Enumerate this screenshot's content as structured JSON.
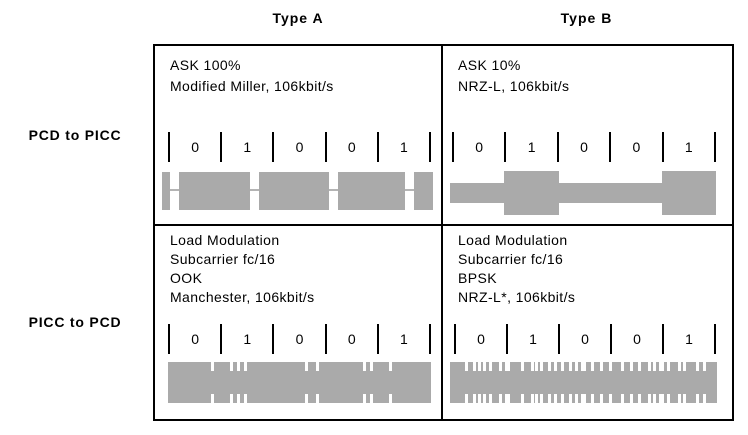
{
  "columns": [
    {
      "label": "Type A"
    },
    {
      "label": "Type B"
    }
  ],
  "row_labels": [
    "PCD to PICC",
    "PICC to PCD"
  ],
  "colors": {
    "waveform_gray": "#aaaaaa",
    "pause_line_gray": "#b4b4b4",
    "border_black": "#000000",
    "background": "#ffffff"
  },
  "cells": [
    {
      "column": "Type A",
      "row": "PCD to PICC",
      "lines": [
        "ASK 100%",
        "Modified Miller, 106kbit/s"
      ],
      "bits": [
        "0",
        "1",
        "0",
        "0",
        "1"
      ],
      "waveform": {
        "kind": "pauses",
        "description": "carrier envelope with 100% ASK pauses (Modified Miller)",
        "pauses": [
          [
            8,
            9
          ],
          [
            88,
            9
          ],
          [
            167,
            9
          ],
          [
            243,
            9
          ]
        ]
      }
    },
    {
      "column": "Type B",
      "row": "PCD to PICC",
      "lines": [
        "ASK 10%",
        "NRZ-L, 106kbit/s"
      ],
      "bits": [
        "0",
        "1",
        "0",
        "0",
        "1"
      ],
      "waveform": {
        "kind": "levels",
        "description": "10% ASK NRZ-L envelope, higher amplitude on 1-bits",
        "high_blocks": [
          [
            54,
            55
          ],
          [
            212,
            54
          ]
        ]
      }
    },
    {
      "column": "Type A",
      "row": "PICC to PCD",
      "lines": [
        "Load Modulation",
        "Subcarrier fc/16",
        "OOK",
        "Manchester, 106kbit/s"
      ],
      "bits": [
        "0",
        "1",
        "0",
        "0",
        "1"
      ],
      "waveform": {
        "kind": "notches",
        "description": "OOK subcarrier bursts (Manchester)",
        "notches": [
          [
            43,
            3
          ],
          [
            62,
            3
          ],
          [
            69,
            3
          ],
          [
            76,
            3
          ],
          [
            137,
            3
          ],
          [
            148,
            3
          ],
          [
            195,
            3
          ],
          [
            202,
            3
          ],
          [
            221,
            3
          ]
        ]
      }
    },
    {
      "column": "Type B",
      "row": "PICC to PCD",
      "lines": [
        "Load Modulation",
        "Subcarrier fc/16",
        "BPSK",
        "NRZ-L*, 106kbit/s"
      ],
      "bits": [
        "0",
        "1",
        "0",
        "0",
        "1"
      ],
      "waveform": {
        "kind": "notches",
        "description": "BPSK subcarrier with phase transitions",
        "notches": [
          [
            15,
            3
          ],
          [
            23,
            3
          ],
          [
            28,
            3
          ],
          [
            33,
            3
          ],
          [
            39,
            3
          ],
          [
            49,
            3
          ],
          [
            55,
            5
          ],
          [
            71,
            3
          ],
          [
            81,
            3
          ],
          [
            85,
            3
          ],
          [
            90,
            3
          ],
          [
            98,
            3
          ],
          [
            104,
            3
          ],
          [
            111,
            3
          ],
          [
            119,
            3
          ],
          [
            125,
            3
          ],
          [
            131,
            5
          ],
          [
            141,
            3
          ],
          [
            150,
            3
          ],
          [
            159,
            3
          ],
          [
            171,
            3
          ],
          [
            180,
            3
          ],
          [
            188,
            3
          ],
          [
            198,
            3
          ],
          [
            203,
            3
          ],
          [
            209,
            5
          ],
          [
            217,
            3
          ],
          [
            228,
            3
          ],
          [
            233,
            3
          ],
          [
            246,
            3
          ],
          [
            253,
            3
          ]
        ]
      }
    }
  ]
}
